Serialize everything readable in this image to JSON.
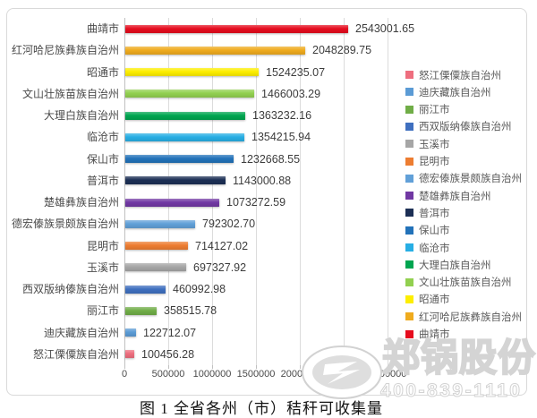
{
  "figure": {
    "caption": "图 1 全省各州（市）秸秆可收集量"
  },
  "chart_data": {
    "type": "bar",
    "orientation": "horizontal",
    "title": "",
    "xlabel": "",
    "ylabel": "",
    "xlim": [
      0,
      3000000
    ],
    "x_ticks": [
      "0",
      "500000",
      "1000000",
      "1500000",
      "2000000",
      "2500000",
      "3000000"
    ],
    "grid": true,
    "legend_position": "right",
    "categories": [
      "曲靖市",
      "红河哈尼族彝族自治州",
      "昭通市",
      "文山壮族苗族自治州",
      "大理白族自治州",
      "临沧市",
      "保山市",
      "普洱市",
      "楚雄彝族自治州",
      "德宏傣族景颇族自治州",
      "昆明市",
      "玉溪市",
      "西双版纳傣族自治州",
      "丽江市",
      "迪庆藏族自治州",
      "怒江傈僳族自治州"
    ],
    "values": [
      2543001.65,
      2048289.75,
      1524235.07,
      1466003.29,
      1363232.16,
      1354215.94,
      1232668.55,
      1143000.88,
      1073272.59,
      792302.7,
      714127.02,
      697327.92,
      460992.98,
      358515.78,
      122712.07,
      100456.28
    ],
    "value_labels": [
      "2543001.65",
      "2048289.75",
      "1524235.07",
      "1466003.29",
      "1363232.16",
      "1354215.94",
      "1232668.55",
      "1143000.88",
      "1073272.59",
      "792302.70",
      "714127.02",
      "697327.92",
      "460992.98",
      "358515.78",
      "122712.07",
      "100456.28"
    ],
    "bar_colors": [
      "#e60c1e",
      "#efab1e",
      "#fdee00",
      "#92d050",
      "#00a550",
      "#27aee4",
      "#2272b9",
      "#1c2f55",
      "#7138a3",
      "#61a0d8",
      "#ed7d31",
      "#a6a6a6",
      "#3f6fbf",
      "#70ad47",
      "#5b9bd5",
      "#ee6e7e"
    ],
    "legend_items": [
      {
        "label": "怒江傈僳族自治州",
        "color": "#ee6e7e"
      },
      {
        "label": "迪庆藏族自治州",
        "color": "#5b9bd5"
      },
      {
        "label": "丽江市",
        "color": "#70ad47"
      },
      {
        "label": "西双版纳傣族自治州",
        "color": "#3f6fbf"
      },
      {
        "label": "玉溪市",
        "color": "#a6a6a6"
      },
      {
        "label": "昆明市",
        "color": "#ed7d31"
      },
      {
        "label": "德宏傣族景颇族自治州",
        "color": "#61a0d8"
      },
      {
        "label": "楚雄彝族自治州",
        "color": "#7138a3"
      },
      {
        "label": "普洱市",
        "color": "#1c2f55"
      },
      {
        "label": "保山市",
        "color": "#2272b9"
      },
      {
        "label": "临沧市",
        "color": "#27aee4"
      },
      {
        "label": "大理白族自治州",
        "color": "#00a550"
      },
      {
        "label": "文山壮族苗族自治州",
        "color": "#92d050"
      },
      {
        "label": "昭通市",
        "color": "#fdee00"
      },
      {
        "label": "红河哈尼族彝族自治州",
        "color": "#efab1e"
      },
      {
        "label": "曲靖市",
        "color": "#e60c1e"
      }
    ]
  },
  "watermark": {
    "company": "郑锅股份",
    "phone": "400-839-1110"
  }
}
